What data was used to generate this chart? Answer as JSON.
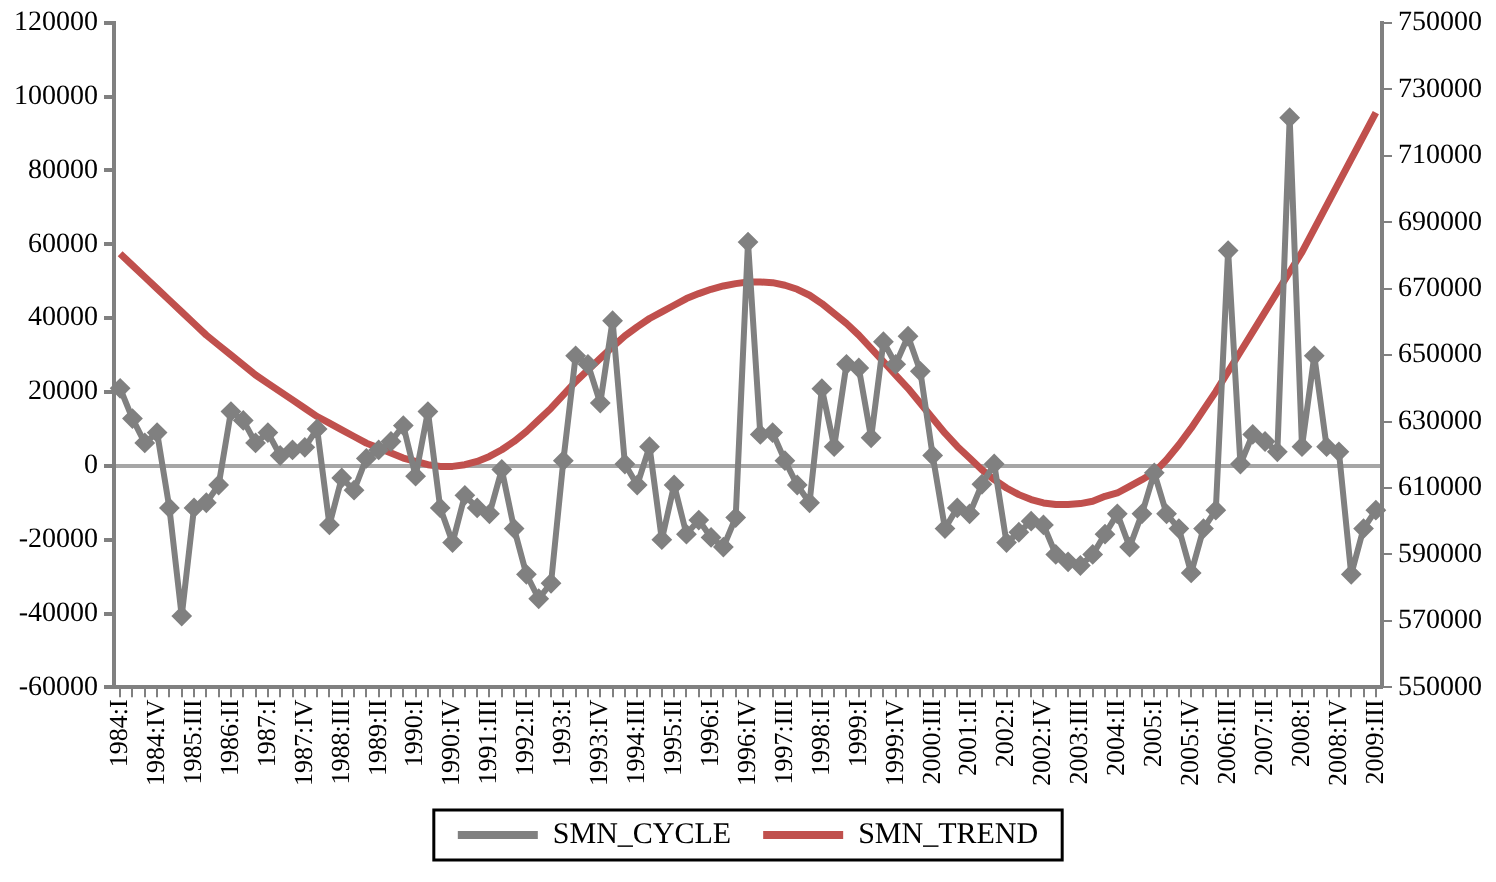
{
  "chart_data": {
    "type": "line",
    "categories": [
      "1984:I",
      null,
      null,
      "1984:IV",
      null,
      null,
      "1985:III",
      null,
      null,
      "1986:II",
      null,
      null,
      "1987:I",
      null,
      null,
      "1987:IV",
      null,
      null,
      "1988:III",
      null,
      null,
      "1989:II",
      null,
      null,
      "1990:I",
      null,
      null,
      "1990:IV",
      null,
      null,
      "1991:III",
      null,
      null,
      "1992:II",
      null,
      null,
      "1993:I",
      null,
      null,
      "1993:IV",
      null,
      null,
      "1994:III",
      null,
      null,
      "1995:II",
      null,
      null,
      "1996:I",
      null,
      null,
      "1996:IV",
      null,
      null,
      "1997:III",
      null,
      null,
      "1998:II",
      null,
      null,
      "1999:I",
      null,
      null,
      "1999:IV",
      null,
      null,
      "2000:III",
      null,
      null,
      "2001:II",
      null,
      null,
      "2002:I",
      null,
      null,
      "2002:IV",
      null,
      null,
      "2003:III",
      null,
      null,
      "2004:II",
      null,
      null,
      "2005:I",
      null,
      null,
      "2005:IV",
      null,
      null,
      "2006:III",
      null,
      null,
      "2007:II",
      null,
      null,
      "2008:I",
      null,
      null,
      "2008:IV",
      null,
      null,
      "2009:III"
    ],
    "series": [
      {
        "name": "SMN_CYCLE",
        "color": "#808080",
        "marker": "diamond",
        "values": [
          21000,
          12800,
          6200,
          9000,
          -11400,
          -40700,
          -11400,
          -10000,
          -5200,
          14700,
          12300,
          6200,
          9000,
          2800,
          4300,
          5000,
          10000,
          -16000,
          -3300,
          -6600,
          2000,
          4300,
          6600,
          10900,
          -2800,
          14700,
          -11400,
          -20800,
          -8000,
          -11400,
          -13000,
          -1000,
          -17000,
          -29400,
          -36000,
          -31800,
          1400,
          29800,
          27500,
          17000,
          39300,
          500,
          -5200,
          5200,
          -20000,
          -5200,
          -18500,
          -14700,
          -19400,
          -22000,
          -14000,
          60600,
          8500,
          9000,
          1400,
          -5200,
          -10000,
          20900,
          5200,
          27500,
          26500,
          7600,
          33600,
          27500,
          35100,
          25600,
          2800,
          -17000,
          -11400,
          -13000,
          -5000,
          500,
          -20800,
          -18000,
          -15000,
          -16000,
          -24000,
          -26000,
          -27000,
          -24000,
          -18500,
          -13000,
          -22000,
          -13000,
          -1900,
          -13000,
          -17000,
          -29000,
          -17000,
          -12000,
          58300,
          500,
          8500,
          6600,
          3800,
          94300,
          5200,
          29800,
          5200,
          3800,
          -29400,
          -17000,
          -12000
        ]
      },
      {
        "name": "SMN_TREND",
        "color": "#c0504d",
        "marker": "none",
        "axis": "y2",
        "values": [
          680500,
          677000,
          673500,
          670000,
          666500,
          663000,
          659500,
          656000,
          653000,
          650000,
          647000,
          644000,
          641500,
          639000,
          636500,
          634000,
          631500,
          629500,
          627500,
          625500,
          623500,
          622000,
          620500,
          619000,
          618000,
          617000,
          616500,
          616500,
          617000,
          618000,
          619500,
          621500,
          624000,
          627000,
          630500,
          634000,
          638000,
          642000,
          645500,
          649000,
          652500,
          655800,
          658500,
          661000,
          663000,
          665000,
          667000,
          668500,
          669800,
          670800,
          671500,
          672000,
          672000,
          671800,
          671000,
          669800,
          668000,
          665500,
          662500,
          659500,
          656000,
          652000,
          648000,
          644000,
          640000,
          635500,
          631000,
          626500,
          622500,
          619000,
          615500,
          612500,
          610000,
          608000,
          606500,
          605500,
          605000,
          605000,
          605300,
          606000,
          607500,
          608500,
          610500,
          612500,
          614700,
          618500,
          623000,
          628000,
          633500,
          639000,
          645000,
          651000,
          657000,
          663000,
          669000,
          675000,
          681000,
          688000,
          695000,
          702000,
          709000,
          716000,
          723000
        ]
      }
    ],
    "ylim": [
      -60000,
      120000
    ],
    "yticks": [
      -60000,
      -40000,
      -20000,
      0,
      20000,
      40000,
      60000,
      80000,
      100000,
      120000
    ],
    "y2lim": [
      550000,
      750000
    ],
    "y2ticks": [
      550000,
      570000,
      590000,
      610000,
      630000,
      650000,
      670000,
      690000,
      710000,
      730000,
      750000
    ],
    "legend": "bottom"
  }
}
